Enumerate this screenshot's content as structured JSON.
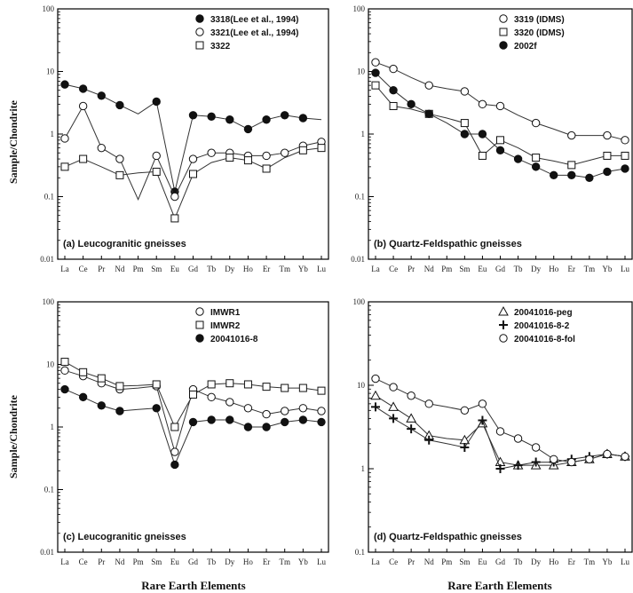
{
  "y_axis_label": "Sample/Chondrite",
  "x_axis_label": "Rare Earth Elements",
  "chart_data": [
    {
      "type": "line",
      "panel": "a",
      "annotation": "(a)  Leucogranitic gneisses",
      "categories": [
        "La",
        "Ce",
        "Pr",
        "Nd",
        "Pm",
        "Sm",
        "Eu",
        "Gd",
        "Tb",
        "Dy",
        "Ho",
        "Er",
        "Tm",
        "Yb",
        "Lu"
      ],
      "x_tick_labels": [
        "La",
        "Ce",
        "Pr",
        "Nd",
        "Pm",
        "Sm",
        "Eu",
        "Gd",
        "Tb",
        "Dy",
        "Ho",
        "Er",
        "Tm",
        "Yb",
        "Lu"
      ],
      "y_scale": "log",
      "ylim": [
        0.01,
        100
      ],
      "y_tick_labels": [
        "0.01",
        "0.1",
        "1",
        "10",
        "100"
      ],
      "legend_position": "top-right",
      "series": [
        {
          "name": "3318(Lee et al., 1994)",
          "marker": "filled-circle",
          "values": [
            6.2,
            5.3,
            4.1,
            2.9,
            null,
            3.3,
            0.12,
            2.0,
            1.9,
            1.7,
            1.2,
            1.7,
            2.0,
            1.8,
            null
          ],
          "line": [
            6.2,
            5.3,
            4.1,
            2.9,
            2.1,
            3.3,
            0.12,
            2.0,
            1.9,
            1.7,
            1.2,
            1.7,
            2.0,
            1.8,
            1.7
          ]
        },
        {
          "name": "3321(Lee et al., 1994)",
          "marker": "open-circle",
          "values": [
            0.85,
            2.8,
            0.6,
            0.4,
            null,
            0.45,
            0.1,
            0.4,
            0.5,
            0.5,
            0.45,
            0.45,
            0.5,
            0.65,
            0.75
          ],
          "line": [
            0.85,
            2.8,
            0.6,
            0.4,
            0.09,
            0.45,
            0.1,
            0.4,
            0.5,
            0.5,
            0.45,
            0.45,
            0.5,
            0.65,
            0.75
          ]
        },
        {
          "name": "3322",
          "marker": "open-square",
          "values": [
            0.3,
            0.4,
            null,
            0.22,
            null,
            0.25,
            0.045,
            0.23,
            null,
            0.42,
            0.38,
            0.28,
            null,
            0.55,
            0.6
          ],
          "line": [
            0.3,
            0.4,
            0.3,
            0.22,
            0.24,
            0.25,
            0.045,
            0.23,
            0.35,
            0.42,
            0.38,
            0.28,
            0.42,
            0.55,
            0.6
          ]
        }
      ]
    },
    {
      "type": "line",
      "panel": "b",
      "annotation": "(b)  Quartz-Feldspathic gneisses",
      "categories": [
        "La",
        "Ce",
        "Pr",
        "Nd",
        "Pm",
        "Sm",
        "Eu",
        "Gd",
        "Tb",
        "Dy",
        "Ho",
        "Er",
        "Tm",
        "Yb",
        "Lu"
      ],
      "x_tick_labels": [
        "La",
        "Ce",
        "Pr",
        "Nd",
        "Pm",
        "Sm",
        "Eu",
        "Gd",
        "Tb",
        "Dy",
        "Ho",
        "Er",
        "Tm",
        "Yb",
        "Lu"
      ],
      "y_scale": "log",
      "ylim": [
        0.01,
        100
      ],
      "y_tick_labels": [
        "0.01",
        "0.1",
        "1",
        "10",
        "100"
      ],
      "legend_position": "top-right",
      "series": [
        {
          "name": "3319 (IDMS)",
          "marker": "open-circle",
          "values": [
            14,
            11,
            null,
            6,
            null,
            4.8,
            3,
            2.8,
            null,
            1.5,
            null,
            0.95,
            null,
            0.95,
            0.8
          ],
          "line": [
            14,
            11,
            8,
            6,
            5.3,
            4.8,
            3,
            2.8,
            2,
            1.5,
            1.2,
            0.95,
            0.95,
            0.95,
            0.8
          ]
        },
        {
          "name": "3320 (IDMS)",
          "marker": "open-square",
          "values": [
            6,
            2.8,
            null,
            2.1,
            null,
            1.5,
            0.45,
            0.8,
            null,
            0.42,
            null,
            0.32,
            null,
            0.45,
            0.45
          ],
          "line": [
            6,
            2.8,
            2.5,
            2.1,
            1.8,
            1.5,
            0.45,
            0.8,
            0.6,
            0.42,
            0.37,
            0.32,
            0.38,
            0.45,
            0.45
          ]
        },
        {
          "name": "2002f",
          "marker": "filled-circle",
          "values": [
            9.5,
            5,
            3,
            2.1,
            null,
            1,
            1,
            0.55,
            0.4,
            0.3,
            0.22,
            0.22,
            0.2,
            0.25,
            0.28
          ],
          "line": [
            9.5,
            5,
            3,
            2.1,
            1.5,
            1,
            1,
            0.55,
            0.4,
            0.3,
            0.22,
            0.22,
            0.2,
            0.25,
            0.28
          ]
        }
      ]
    },
    {
      "type": "line",
      "panel": "c",
      "annotation": "(c)  Leucogranitic gneisses",
      "categories": [
        "La",
        "Ce",
        "Pr",
        "Nd",
        "Pm",
        "Sm",
        "Eu",
        "Gd",
        "Tb",
        "Dy",
        "Ho",
        "Er",
        "Tm",
        "Yb",
        "Lu"
      ],
      "x_tick_labels": [
        "La",
        "Ce",
        "Pr",
        "Nd",
        "Pm",
        "Sm",
        "Eu",
        "Gd",
        "Tb",
        "Dy",
        "Ho",
        "Er",
        "Tm",
        "Yb",
        "Lu"
      ],
      "y_scale": "log",
      "ylim": [
        0.01,
        100
      ],
      "y_tick_labels": [
        "0.01",
        "0.1",
        "1",
        "10",
        "100"
      ],
      "legend_position": "top-right",
      "series": [
        {
          "name": "IMWR1",
          "marker": "open-circle",
          "values": [
            8,
            6.5,
            5,
            4,
            null,
            4.5,
            0.4,
            4,
            3,
            2.5,
            2,
            1.6,
            1.8,
            2,
            1.8
          ],
          "line": [
            8,
            6.5,
            5,
            4,
            4.2,
            4.5,
            0.4,
            4,
            3,
            2.5,
            2,
            1.6,
            1.8,
            2,
            1.8
          ]
        },
        {
          "name": "IMWR2",
          "marker": "open-square",
          "values": [
            11,
            7.5,
            6,
            4.5,
            null,
            4.8,
            1,
            3.3,
            4.8,
            5,
            4.8,
            4.4,
            4.2,
            4.2,
            3.8
          ],
          "line": [
            11,
            7.5,
            6,
            4.5,
            4.6,
            4.8,
            1,
            3.3,
            4.8,
            5,
            4.8,
            4.4,
            4.2,
            4.2,
            3.8
          ]
        },
        {
          "name": "20041016-8",
          "marker": "filled-circle",
          "values": [
            4,
            3,
            2.2,
            1.8,
            null,
            2,
            0.25,
            1.2,
            1.3,
            1.3,
            1,
            1,
            1.2,
            1.3,
            1.2
          ],
          "line": [
            4,
            3,
            2.2,
            1.8,
            1.9,
            2,
            0.25,
            1.2,
            1.3,
            1.3,
            1,
            1,
            1.2,
            1.3,
            1.2
          ]
        }
      ]
    },
    {
      "type": "line",
      "panel": "d",
      "annotation": "(d)  Quartz-Feldspathic gneisses",
      "categories": [
        "La",
        "Ce",
        "Pr",
        "Nd",
        "Pm",
        "Sm",
        "Eu",
        "Gd",
        "Tb",
        "Dy",
        "Ho",
        "Er",
        "Tm",
        "Yb",
        "Lu"
      ],
      "x_tick_labels": [
        "La",
        "Ce",
        "Pr",
        "Nd",
        "Pm",
        "Sm",
        "Eu",
        "Gd",
        "Tb",
        "Dy",
        "Ho",
        "Er",
        "Tm",
        "Yb",
        "Lu"
      ],
      "y_scale": "log",
      "ylim": [
        0.1,
        100
      ],
      "y_tick_labels": [
        "0.1",
        "1",
        "10",
        "100"
      ],
      "legend_position": "top-right",
      "series": [
        {
          "name": "20041016-peg",
          "marker": "open-triangle",
          "values": [
            7.5,
            5.5,
            4,
            2.5,
            null,
            2.2,
            3.5,
            1.2,
            1.1,
            1.1,
            1.1,
            1.2,
            1.3,
            1.5,
            1.4
          ],
          "line": [
            7.5,
            5.5,
            4,
            2.5,
            2.3,
            2.2,
            3.5,
            1.2,
            1.1,
            1.1,
            1.1,
            1.2,
            1.3,
            1.5,
            1.4
          ]
        },
        {
          "name": "20041016-8-2",
          "marker": "plus",
          "values": [
            5.5,
            4,
            3,
            2.2,
            null,
            1.8,
            3.8,
            1,
            1.1,
            1.2,
            1.2,
            1.3,
            1.4,
            1.5,
            1.4
          ],
          "line": [
            5.5,
            4,
            3,
            2.2,
            2,
            1.8,
            3.8,
            1,
            1.1,
            1.2,
            1.2,
            1.3,
            1.4,
            1.5,
            1.4
          ]
        },
        {
          "name": "20041016-8-fol",
          "marker": "open-circle",
          "values": [
            12,
            9.5,
            7.5,
            6,
            null,
            5,
            6,
            2.8,
            2.3,
            1.8,
            1.3,
            1.2,
            1.3,
            1.5,
            1.4
          ],
          "line": [
            12,
            9.5,
            7.5,
            6,
            5.5,
            5,
            6,
            2.8,
            2.3,
            1.8,
            1.3,
            1.2,
            1.3,
            1.5,
            1.4
          ]
        }
      ]
    }
  ]
}
